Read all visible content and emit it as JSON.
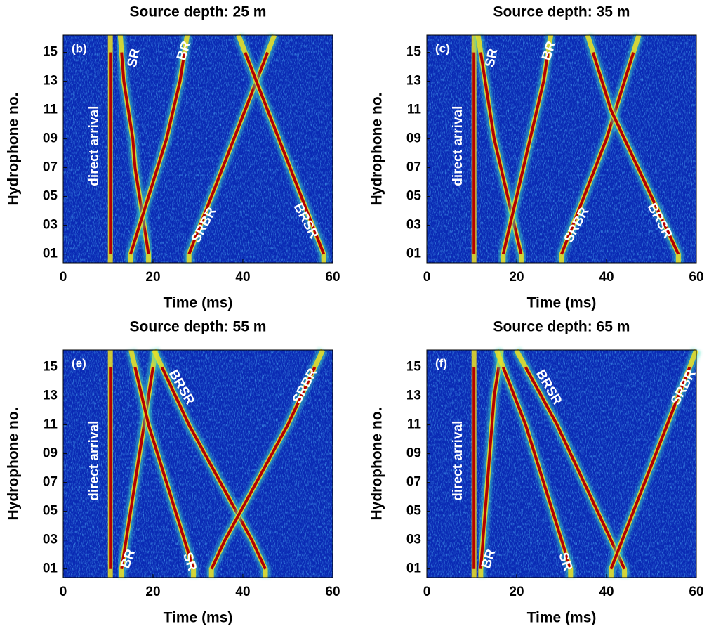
{
  "chart_data": [
    {
      "type": "arrival-map",
      "title": "Source depth: 25 m",
      "panel_label": "(b)",
      "xlabel": "Time (ms)",
      "ylabel": "Hydrophone no.",
      "xlim": [
        0,
        60
      ],
      "xticks": [
        0,
        20,
        40,
        60
      ],
      "ylim": [
        0.4,
        16.2
      ],
      "yticks": [
        {
          "value": 1,
          "label": "01"
        },
        {
          "value": 3,
          "label": "03"
        },
        {
          "value": 5,
          "label": "05"
        },
        {
          "value": 7,
          "label": "07"
        },
        {
          "value": 9,
          "label": "09"
        },
        {
          "value": 11,
          "label": "11"
        },
        {
          "value": 13,
          "label": "13"
        },
        {
          "value": 15,
          "label": "15"
        }
      ],
      "y": [
        1,
        3,
        5,
        7,
        9,
        11,
        13,
        15
      ],
      "series": [
        {
          "name": "direct arrival",
          "color": "#b40000",
          "values": [
            10.5,
            10.5,
            10.5,
            10.5,
            10.5,
            10.5,
            10.5,
            10.5
          ]
        },
        {
          "name": "SR",
          "color": "#b40000",
          "values": [
            19,
            18,
            17,
            16,
            15.5,
            14.5,
            13.5,
            13
          ]
        },
        {
          "name": "BR",
          "color": "#b40000",
          "values": [
            15,
            17,
            19,
            21,
            23,
            24.5,
            26,
            27
          ]
        },
        {
          "name": "SRBR",
          "color": "#b40000",
          "values": [
            28,
            30.5,
            33,
            35.5,
            38,
            40.5,
            43,
            45.5
          ]
        },
        {
          "name": "BRSR",
          "color": "#b40000",
          "values": [
            58,
            55.5,
            53,
            50.5,
            48,
            45.5,
            43,
            40.5
          ]
        }
      ]
    },
    {
      "type": "arrival-map",
      "title": "Source depth: 35 m",
      "panel_label": "(c)",
      "xlabel": "Time (ms)",
      "ylabel": "Hydrophone no.",
      "xlim": [
        0,
        60
      ],
      "xticks": [
        0,
        20,
        40,
        60
      ],
      "ylim": [
        0.4,
        16.2
      ],
      "yticks": [
        {
          "value": 1,
          "label": "01"
        },
        {
          "value": 3,
          "label": "03"
        },
        {
          "value": 5,
          "label": "05"
        },
        {
          "value": 7,
          "label": "07"
        },
        {
          "value": 9,
          "label": "09"
        },
        {
          "value": 11,
          "label": "11"
        },
        {
          "value": 13,
          "label": "13"
        },
        {
          "value": 15,
          "label": "15"
        }
      ],
      "y": [
        1,
        3,
        5,
        7,
        9,
        11,
        13,
        15
      ],
      "series": [
        {
          "name": "direct arrival",
          "color": "#b40000",
          "values": [
            10.5,
            10.5,
            10.5,
            10.5,
            10.5,
            10.5,
            10.5,
            10.5
          ]
        },
        {
          "name": "SR",
          "color": "#b40000",
          "values": [
            21,
            19.5,
            18,
            16.5,
            15,
            14,
            13,
            12
          ]
        },
        {
          "name": "BR",
          "color": "#b40000",
          "values": [
            17,
            18.5,
            20,
            21.5,
            23,
            24.5,
            26,
            27
          ]
        },
        {
          "name": "SRBR",
          "color": "#b40000",
          "values": [
            30,
            32.5,
            35,
            37.5,
            40,
            42,
            44,
            46
          ]
        },
        {
          "name": "BRSR",
          "color": "#b40000",
          "values": [
            56,
            53,
            50,
            47,
            44,
            41,
            39,
            37
          ]
        }
      ]
    },
    {
      "type": "arrival-map",
      "title": "Source depth: 55 m",
      "panel_label": "(e)",
      "xlabel": "Time (ms)",
      "ylabel": "Hydrophone no.",
      "xlim": [
        0,
        60
      ],
      "xticks": [
        0,
        20,
        40,
        60
      ],
      "ylim": [
        0.4,
        16.2
      ],
      "yticks": [
        {
          "value": 1,
          "label": "01"
        },
        {
          "value": 3,
          "label": "03"
        },
        {
          "value": 5,
          "label": "05"
        },
        {
          "value": 7,
          "label": "07"
        },
        {
          "value": 9,
          "label": "09"
        },
        {
          "value": 11,
          "label": "11"
        },
        {
          "value": 13,
          "label": "13"
        },
        {
          "value": 15,
          "label": "15"
        }
      ],
      "y": [
        1,
        3,
        5,
        7,
        9,
        11,
        13,
        15
      ],
      "series": [
        {
          "name": "direct arrival",
          "color": "#b40000",
          "values": [
            10.5,
            10.5,
            10.5,
            10.5,
            10.5,
            10.5,
            10.5,
            10.5
          ]
        },
        {
          "name": "BR",
          "color": "#b40000",
          "values": [
            13,
            14,
            15,
            16,
            17,
            18,
            19,
            20
          ]
        },
        {
          "name": "SR",
          "color": "#b40000",
          "values": [
            29,
            27,
            25,
            23,
            21,
            19,
            17.5,
            16
          ]
        },
        {
          "name": "BRSR",
          "color": "#b40000",
          "values": [
            45,
            42,
            38.5,
            35,
            31.5,
            28,
            25,
            22
          ]
        },
        {
          "name": "SRBR",
          "color": "#b40000",
          "values": [
            33,
            36,
            39.5,
            43,
            46.5,
            50,
            53,
            56
          ]
        }
      ]
    },
    {
      "type": "arrival-map",
      "title": "Source depth: 65 m",
      "panel_label": "(f)",
      "xlabel": "Time (ms)",
      "ylabel": "Hydrophone no.",
      "xlim": [
        0,
        60
      ],
      "xticks": [
        0,
        20,
        40,
        60
      ],
      "ylim": [
        0.4,
        16.2
      ],
      "yticks": [
        {
          "value": 1,
          "label": "01"
        },
        {
          "value": 3,
          "label": "03"
        },
        {
          "value": 5,
          "label": "05"
        },
        {
          "value": 7,
          "label": "07"
        },
        {
          "value": 9,
          "label": "09"
        },
        {
          "value": 11,
          "label": "11"
        },
        {
          "value": 13,
          "label": "13"
        },
        {
          "value": 15,
          "label": "15"
        }
      ],
      "y": [
        1,
        3,
        5,
        7,
        9,
        11,
        13,
        15
      ],
      "series": [
        {
          "name": "direct arrival",
          "color": "#b40000",
          "values": [
            10.5,
            10.5,
            10.5,
            10.5,
            10.5,
            10.5,
            10.5,
            10.5
          ]
        },
        {
          "name": "BR",
          "color": "#b40000",
          "values": [
            12,
            12.5,
            13,
            13.5,
            14,
            14.5,
            15,
            16
          ]
        },
        {
          "name": "SR",
          "color": "#b40000",
          "values": [
            32,
            30,
            28,
            26,
            24,
            22,
            19.5,
            17
          ]
        },
        {
          "name": "BRSR",
          "color": "#b40000",
          "values": [
            44,
            41,
            38,
            35,
            32,
            29,
            25.5,
            22
          ]
        },
        {
          "name": "SRBR",
          "color": "#b40000",
          "values": [
            41,
            43.5,
            46,
            48.5,
            51,
            53.5,
            56,
            58.5
          ]
        }
      ]
    }
  ]
}
